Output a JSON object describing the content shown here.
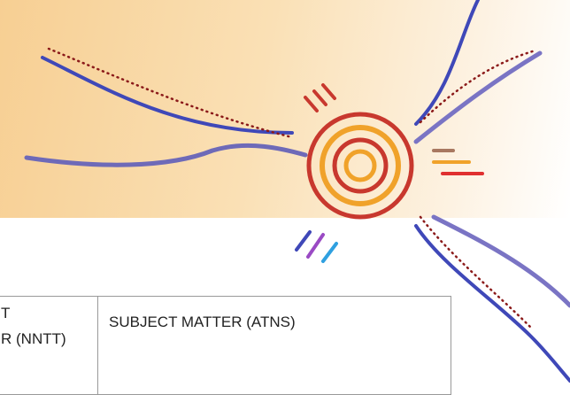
{
  "table": {
    "header_cells": [
      {
        "lines": [
          "T",
          "R (NNTT)"
        ]
      },
      {
        "text": "SUBJECT MATTER (ATNS)"
      }
    ]
  }
}
